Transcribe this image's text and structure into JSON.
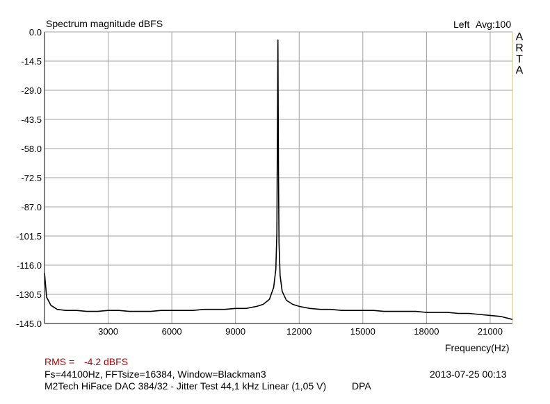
{
  "header": {
    "title": "Spectrum magnitude dBFS",
    "channel": "Left",
    "avg": "Avg:100",
    "brand_letters": [
      "A",
      "R",
      "T",
      "A"
    ]
  },
  "footer": {
    "rms_label": "RMS =",
    "rms_value": "-4.2 dBFS",
    "params": "Fs=44100Hz, FFTsize=16384, Window=Blackman3",
    "datetime": "2013-07-25  00:13",
    "description": "M2Tech HiFace DAC 384/32 - Jitter Test 44,1 kHz Linear (1,05 V)",
    "tag": "DPA"
  },
  "colors": {
    "rms_red": "#c00000",
    "grid": "#a0a0a0",
    "right_border": "#c8c860",
    "trace": "#000000"
  },
  "chart_data": {
    "type": "line",
    "title": "Spectrum magnitude dBFS",
    "xlabel": "Frequency(Hz)",
    "ylabel": "",
    "xlim": [
      0,
      22050
    ],
    "ylim": [
      -145.0,
      0.0
    ],
    "x_ticks": [
      3000,
      6000,
      9000,
      12000,
      15000,
      18000,
      21000
    ],
    "y_ticks": [
      "0.0",
      "-14.5",
      "-29.0",
      "-43.5",
      "-58.0",
      "-72.5",
      "-87.0",
      "-101.5",
      "-116.0",
      "-130.5",
      "-145.0"
    ],
    "grid": true,
    "series": [
      {
        "x": [
          0,
          100,
          300,
          600,
          1000,
          1500,
          2000,
          2500,
          3000,
          3500,
          4000,
          4500,
          5000,
          5500,
          6000,
          6500,
          7000,
          7500,
          8000,
          8500,
          9000,
          9500,
          10000,
          10300,
          10600,
          10800,
          10900,
          10950,
          11000,
          11025,
          11050,
          11100,
          11200,
          11400,
          11700,
          12000,
          12500,
          13000,
          13500,
          14000,
          14500,
          15000,
          15500,
          16000,
          16500,
          17000,
          17500,
          18000,
          18500,
          19000,
          19500,
          20000,
          20500,
          21000,
          21500,
          22050
        ],
        "y": [
          -120.0,
          -132.0,
          -136.0,
          -138.0,
          -138.5,
          -138.5,
          -139.0,
          -139.0,
          -138.5,
          -138.5,
          -139.0,
          -139.0,
          -139.0,
          -138.5,
          -138.5,
          -138.5,
          -138.5,
          -138.0,
          -138.0,
          -138.0,
          -137.5,
          -137.5,
          -136.5,
          -135.5,
          -133.0,
          -127.0,
          -118.0,
          -100.0,
          -4.0,
          -70.0,
          -105.0,
          -121.0,
          -129.0,
          -133.5,
          -135.5,
          -136.5,
          -137.5,
          -138.0,
          -138.0,
          -138.5,
          -138.5,
          -138.5,
          -138.5,
          -139.0,
          -139.0,
          -139.0,
          -139.0,
          -139.5,
          -139.5,
          -139.5,
          -140.0,
          -140.0,
          -140.5,
          -141.0,
          -141.5,
          -143.0
        ]
      }
    ]
  }
}
